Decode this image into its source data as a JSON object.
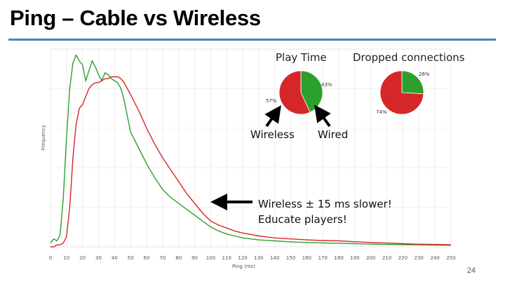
{
  "slide": {
    "title": "Ping – Cable vs Wireless",
    "page_number": "24",
    "note_line1": "Wireless ± 15 ms slower!",
    "note_line2": "Educate players!",
    "callout_wireless": "Wireless",
    "callout_wired": "Wired",
    "colors": {
      "rule": "#4f81bd",
      "wired": "#2ca02c",
      "wireless": "#d62728",
      "arrow": "#000000"
    }
  },
  "chart_data": [
    {
      "type": "line",
      "title": "",
      "xlabel": "Ping (ms)",
      "ylabel": "Frequency",
      "x_ticks": [
        "0",
        "10",
        "20",
        "30",
        "40",
        "50",
        "60",
        "70",
        "80",
        "90",
        "100",
        "110",
        "120",
        "130",
        "140",
        "150",
        "160",
        "170",
        "180",
        "190",
        "200",
        "210",
        "220",
        "230",
        "240",
        "250"
      ],
      "xlim": [
        0,
        250
      ],
      "ylim": [
        0,
        1
      ],
      "y_ticks_shown": false,
      "series": [
        {
          "color": "#2ca02c",
          "x": [
            0,
            2,
            4,
            6,
            8,
            10,
            12,
            14,
            16,
            18,
            20,
            22,
            24,
            26,
            28,
            30,
            32,
            34,
            36,
            38,
            40,
            42,
            44,
            46,
            48,
            50,
            55,
            60,
            65,
            70,
            75,
            80,
            85,
            90,
            95,
            100,
            105,
            110,
            115,
            120,
            130,
            140,
            150,
            160,
            170,
            180,
            190,
            200,
            210,
            220,
            230,
            240,
            250
          ],
          "y": [
            0.02,
            0.04,
            0.03,
            0.06,
            0.25,
            0.55,
            0.8,
            0.93,
            0.97,
            0.94,
            0.92,
            0.84,
            0.89,
            0.94,
            0.91,
            0.87,
            0.84,
            0.88,
            0.87,
            0.85,
            0.84,
            0.83,
            0.8,
            0.74,
            0.66,
            0.58,
            0.5,
            0.42,
            0.35,
            0.29,
            0.25,
            0.22,
            0.19,
            0.16,
            0.13,
            0.1,
            0.08,
            0.065,
            0.055,
            0.045,
            0.035,
            0.03,
            0.025,
            0.022,
            0.02,
            0.018,
            0.016,
            0.014,
            0.012,
            0.011,
            0.01,
            0.009,
            0.008
          ]
        },
        {
          "color": "#d62728",
          "x": [
            0,
            2,
            4,
            6,
            8,
            10,
            12,
            14,
            16,
            18,
            20,
            22,
            24,
            26,
            28,
            30,
            32,
            34,
            36,
            38,
            40,
            42,
            44,
            46,
            48,
            50,
            55,
            60,
            65,
            70,
            75,
            80,
            85,
            90,
            95,
            100,
            105,
            110,
            115,
            120,
            130,
            140,
            150,
            160,
            170,
            180,
            190,
            200,
            210,
            220,
            230,
            240,
            250
          ],
          "y": [
            0.0,
            0.0,
            0.01,
            0.01,
            0.02,
            0.05,
            0.2,
            0.45,
            0.62,
            0.7,
            0.72,
            0.76,
            0.8,
            0.82,
            0.83,
            0.83,
            0.84,
            0.85,
            0.85,
            0.86,
            0.86,
            0.86,
            0.85,
            0.83,
            0.8,
            0.77,
            0.69,
            0.6,
            0.52,
            0.45,
            0.39,
            0.33,
            0.27,
            0.22,
            0.17,
            0.13,
            0.11,
            0.095,
            0.08,
            0.07,
            0.055,
            0.045,
            0.04,
            0.035,
            0.032,
            0.03,
            0.026,
            0.022,
            0.019,
            0.016,
            0.013,
            0.012,
            0.011
          ]
        }
      ]
    },
    {
      "type": "pie",
      "title": "Play Time",
      "slices": [
        {
          "label": "43%",
          "value": 43,
          "color": "#2ca02c"
        },
        {
          "label": "57%",
          "value": 57,
          "color": "#d62728"
        }
      ]
    },
    {
      "type": "pie",
      "title": "Dropped connections",
      "slices": [
        {
          "label": "26%",
          "value": 26,
          "color": "#2ca02c"
        },
        {
          "label": "74%",
          "value": 74,
          "color": "#d62728"
        }
      ]
    }
  ]
}
